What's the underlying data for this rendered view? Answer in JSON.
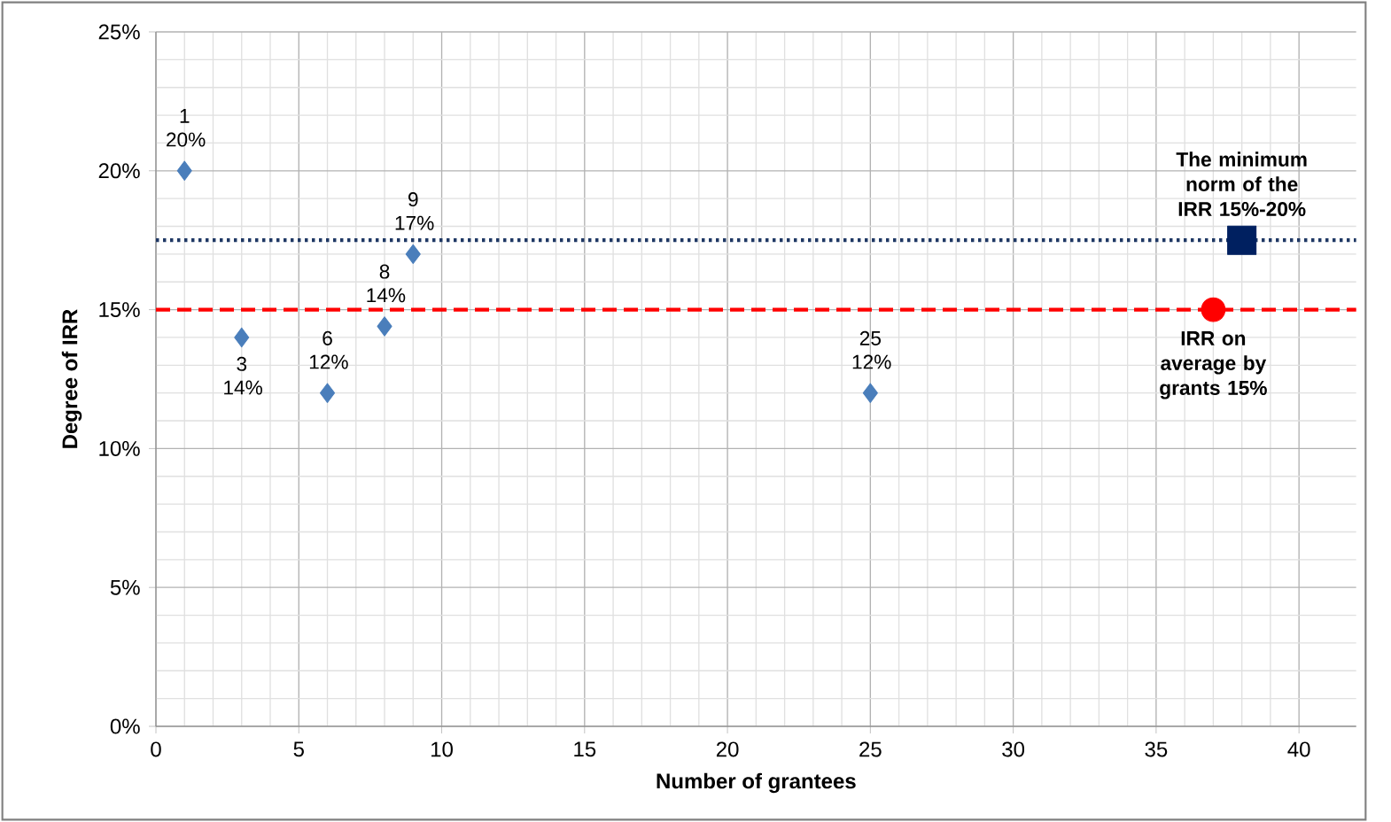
{
  "chart_data": {
    "type": "scatter",
    "xlabel": "Number  of  grantees",
    "ylabel": "Degree  of  IRR",
    "xlim": [
      0,
      42
    ],
    "xticks": [
      0,
      5,
      10,
      15,
      20,
      25,
      30,
      35,
      40
    ],
    "ylim": [
      0,
      25
    ],
    "yticks": [
      {
        "value": 0,
        "label": "0%"
      },
      {
        "value": 5,
        "label": "5%"
      },
      {
        "value": 10,
        "label": "10%"
      },
      {
        "value": 15,
        "label": "15%"
      },
      {
        "value": 20,
        "label": "20%"
      },
      {
        "value": 25,
        "label": "25%"
      }
    ],
    "grid": true,
    "series": [
      {
        "marker": "diamond",
        "color": "#4a7ebb",
        "x": [
          1,
          3,
          6,
          8,
          9,
          25
        ],
        "values": [
          20,
          14,
          12,
          14.4,
          17,
          12
        ],
        "value_labels": [
          "1 20%",
          "3 14%",
          "6 12%",
          "8 14%",
          "9 17%",
          "25 12%"
        ]
      },
      {
        "marker": "square",
        "color": "#002060",
        "name": "The minimum norm of  the IRR 15%-20%",
        "x": [
          38
        ],
        "values": [
          17.5
        ]
      },
      {
        "marker": "circle",
        "color": "#ff0000",
        "name": "IRR on average by grants 15%",
        "x": [
          37
        ],
        "values": [
          15
        ]
      }
    ],
    "ref_lines": [
      {
        "axis": "y",
        "value": 17.5,
        "color": "#1f3864",
        "line_style": "dotted"
      },
      {
        "axis": "y",
        "value": 15,
        "color": "#ff0000",
        "line_style": "dashed"
      }
    ]
  }
}
